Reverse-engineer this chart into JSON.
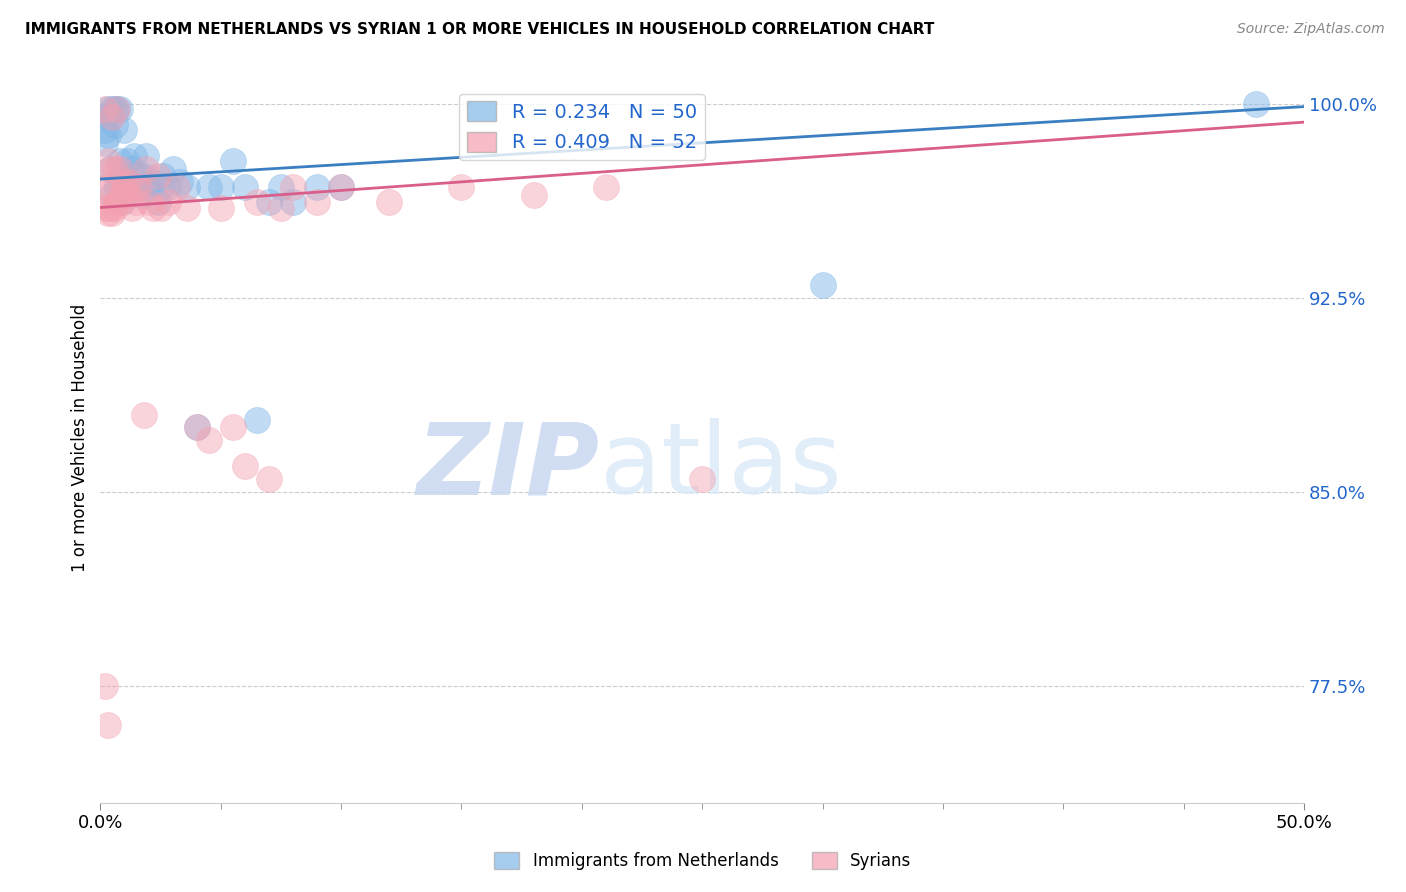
{
  "title": "IMMIGRANTS FROM NETHERLANDS VS SYRIAN 1 OR MORE VEHICLES IN HOUSEHOLD CORRELATION CHART",
  "source": "Source: ZipAtlas.com",
  "ylabel": "1 or more Vehicles in Household",
  "xlim": [
    0.0,
    0.5
  ],
  "ylim": [
    0.73,
    1.012
  ],
  "yticks": [
    0.775,
    0.85,
    0.925,
    1.0
  ],
  "ytick_labels": [
    "77.5%",
    "85.0%",
    "92.5%",
    "100.0%"
  ],
  "blue_R": 0.234,
  "blue_N": 50,
  "pink_R": 0.409,
  "pink_N": 52,
  "blue_color": "#82b8e8",
  "pink_color": "#f4a0b0",
  "blue_line_color": "#3a7fc1",
  "pink_line_color": "#d95f8a",
  "watermark_zip": "ZIP",
  "watermark_atlas": "atlas",
  "legend_blue": "Immigrants from Netherlands",
  "legend_pink": "Syrians",
  "blue_trend_y0": 0.971,
  "blue_trend_y1": 0.999,
  "pink_trend_y0": 0.96,
  "pink_trend_y1": 0.993,
  "blue_x": [
    0.001,
    0.002,
    0.002,
    0.003,
    0.003,
    0.004,
    0.004,
    0.005,
    0.005,
    0.006,
    0.006,
    0.007,
    0.007,
    0.008,
    0.008,
    0.009,
    0.009,
    0.01,
    0.01,
    0.011,
    0.012,
    0.013,
    0.014,
    0.015,
    0.016,
    0.017,
    0.018,
    0.019,
    0.02,
    0.022,
    0.024,
    0.025,
    0.026,
    0.028,
    0.03,
    0.033,
    0.036,
    0.04,
    0.045,
    0.05,
    0.055,
    0.06,
    0.065,
    0.07,
    0.075,
    0.08,
    0.09,
    0.1,
    0.3,
    0.48
  ],
  "blue_y": [
    0.995,
    0.99,
    0.985,
    0.998,
    0.988,
    0.995,
    0.975,
    0.998,
    0.965,
    0.998,
    0.992,
    0.998,
    0.968,
    0.998,
    0.978,
    0.972,
    0.962,
    0.99,
    0.968,
    0.978,
    0.97,
    0.975,
    0.98,
    0.968,
    0.972,
    0.965,
    0.972,
    0.98,
    0.968,
    0.97,
    0.962,
    0.968,
    0.972,
    0.968,
    0.975,
    0.97,
    0.968,
    0.875,
    0.968,
    0.968,
    0.978,
    0.968,
    0.878,
    0.962,
    0.968,
    0.962,
    0.968,
    0.968,
    0.93,
    1.0
  ],
  "pink_x": [
    0.001,
    0.002,
    0.002,
    0.003,
    0.003,
    0.004,
    0.005,
    0.005,
    0.006,
    0.007,
    0.007,
    0.008,
    0.009,
    0.01,
    0.011,
    0.012,
    0.013,
    0.015,
    0.016,
    0.018,
    0.019,
    0.02,
    0.022,
    0.024,
    0.028,
    0.032,
    0.036,
    0.04,
    0.045,
    0.05,
    0.055,
    0.06,
    0.065,
    0.07,
    0.075,
    0.08,
    0.09,
    0.1,
    0.12,
    0.15,
    0.18,
    0.21,
    0.25,
    0.003,
    0.004,
    0.006,
    0.008,
    0.01,
    0.015,
    0.025,
    0.002,
    0.003
  ],
  "pink_y": [
    0.968,
    0.998,
    0.96,
    0.978,
    0.958,
    0.975,
    0.995,
    0.958,
    0.975,
    0.998,
    0.962,
    0.975,
    0.962,
    0.97,
    0.965,
    0.97,
    0.96,
    0.962,
    0.968,
    0.88,
    0.975,
    0.962,
    0.96,
    0.972,
    0.962,
    0.968,
    0.96,
    0.875,
    0.87,
    0.96,
    0.875,
    0.86,
    0.962,
    0.855,
    0.96,
    0.968,
    0.962,
    0.968,
    0.962,
    0.968,
    0.965,
    0.968,
    0.855,
    0.968,
    0.96,
    0.96,
    0.965,
    0.968,
    0.968,
    0.96,
    0.775,
    0.76
  ]
}
